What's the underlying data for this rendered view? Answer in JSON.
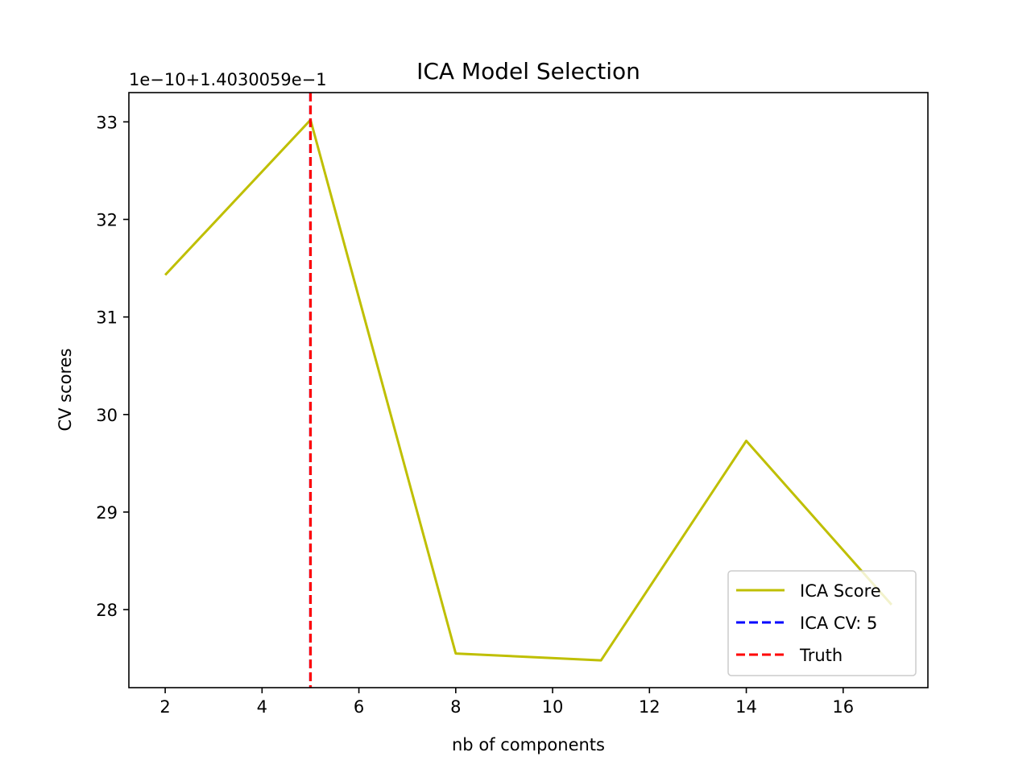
{
  "chart_data": {
    "type": "line",
    "title": "ICA Model Selection",
    "xlabel": "nb of components",
    "ylabel": "CV scores",
    "y_offset_label": "1e−10+1.4030059e−1",
    "xlim": [
      1.25,
      17.75
    ],
    "ylim": [
      27.2,
      33.3
    ],
    "x_ticks": [
      2,
      4,
      6,
      8,
      10,
      12,
      14,
      16
    ],
    "y_ticks": [
      28,
      29,
      30,
      31,
      32,
      33
    ],
    "grid": false,
    "legend_position": "lower-right",
    "series": [
      {
        "name": "ICA Score",
        "style": "solid",
        "color": "#bfbf00",
        "x": [
          2,
          5,
          8,
          11,
          14,
          17
        ],
        "y": [
          31.43,
          33.02,
          27.55,
          27.48,
          29.73,
          28.05
        ]
      }
    ],
    "vlines": [
      {
        "name": "ICA CV: 5",
        "x": 5,
        "style": "dashed",
        "color": "#0000ff"
      },
      {
        "name": "Truth",
        "x": 5,
        "style": "dashed",
        "color": "#ff0000"
      }
    ]
  }
}
